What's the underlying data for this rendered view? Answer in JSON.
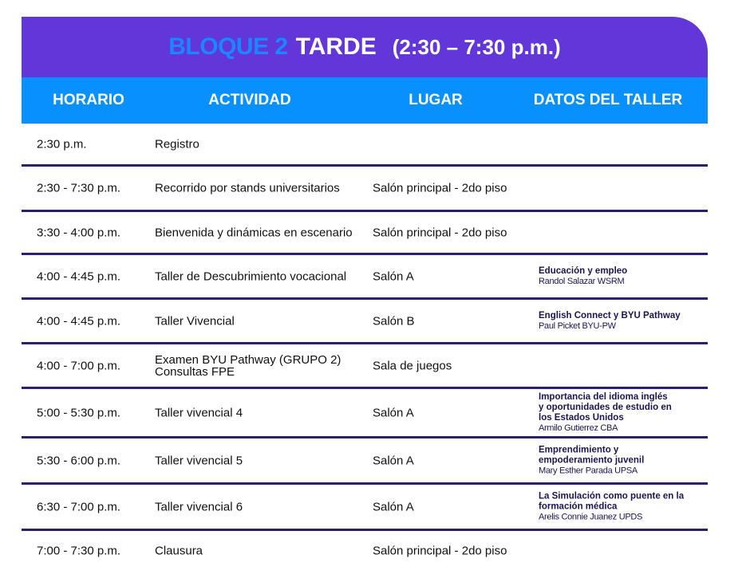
{
  "title": {
    "block": "BLOQUE 2",
    "period": "TARDE",
    "time": "(2:30 – 7:30 p.m.)"
  },
  "columns": [
    "HORARIO",
    "ACTIVIDAD",
    "LUGAR",
    "DATOS DEL TALLER"
  ],
  "rows": [
    {
      "time": "2:30 p.m.",
      "activity": "Registro",
      "place": "",
      "topic": "",
      "speaker": ""
    },
    {
      "time": "2:30 - 7:30 p.m.",
      "activity": "Recorrido por stands universitarios",
      "place": "Salón principal - 2do piso",
      "topic": "",
      "speaker": ""
    },
    {
      "time": "3:30 - 4:00 p.m.",
      "activity": "Bienvenida y dinámicas en escenario",
      "place": "Salón principal - 2do piso",
      "topic": "",
      "speaker": ""
    },
    {
      "time": "4:00 - 4:45 p.m.",
      "activity": "Taller de Descubrimiento vocacional",
      "place": "Salón A",
      "topic": "Educación y empleo",
      "speaker": "Randol Salazar WSRM"
    },
    {
      "time": "4:00 - 4:45 p.m.",
      "activity": "Taller Vivencial",
      "place": "Salón B",
      "topic": "English Connect y BYU Pathway",
      "speaker": "Paul Picket BYU-PW"
    },
    {
      "time": "4:00 - 7:00 p.m.",
      "activity": "Examen BYU Pathway (GRUPO 2)\nConsultas FPE",
      "place": "Sala de juegos",
      "topic": "",
      "speaker": ""
    },
    {
      "time": "5:00 - 5:30 p.m.",
      "activity": "Taller vivencial 4",
      "place": "Salón A",
      "topic": "Importancia del idioma inglés\ny oportunidades de estudio en\nlos Estados Unidos",
      "speaker": "Armilo Gutierrez  CBA"
    },
    {
      "time": "5:30 - 6:00 p.m.",
      "activity": "Taller vivencial 5",
      "place": "Salón A",
      "topic": "Emprendimiento y\nempoderamiento juvenil",
      "speaker": "Mary Esther Parada UPSA"
    },
    {
      "time": "6:30 - 7:00 p.m.",
      "activity": "Taller vivencial 6",
      "place": "Salón A",
      "topic": "La Simulación como puente en la\nformación médica",
      "speaker": "Arelis Connie Juanez UPDS"
    },
    {
      "time": "7:00 - 7:30 p.m.",
      "activity": "Clausura",
      "place": "Salón principal - 2do piso",
      "topic": "",
      "speaker": ""
    }
  ]
}
